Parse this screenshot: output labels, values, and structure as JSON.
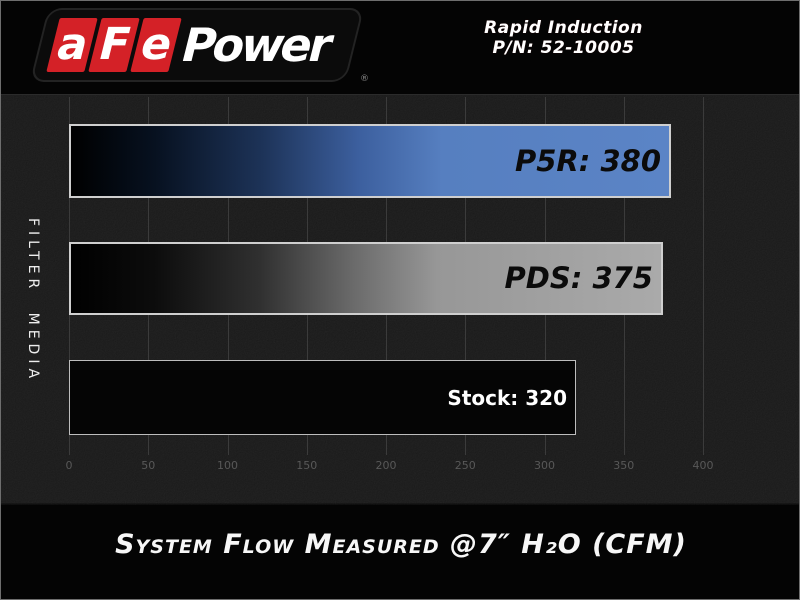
{
  "header": {
    "logo": {
      "letters": [
        "a",
        "F",
        "e"
      ],
      "word": "Power",
      "registered_mark": "®",
      "red_color": "#d42127"
    },
    "product_line1": "Rapid Induction",
    "product_line2": "P/N: 52-10005"
  },
  "chart_data": {
    "type": "bar",
    "orientation": "horizontal",
    "title": "",
    "ylabel": "FILTER MEDIA",
    "caption": "System Flow Measured @7″ H₂O (CFM)",
    "categories": [
      "P5R",
      "PDS",
      "Stock"
    ],
    "values": [
      380,
      375,
      320
    ],
    "bar_labels": [
      "P5R: 380",
      "PDS: 375",
      "Stock: 320"
    ],
    "x_ticks": [
      "0",
      "50",
      "100",
      "150",
      "200",
      "250",
      "300",
      "350",
      "400"
    ],
    "x_tick_values": [
      0,
      50,
      100,
      150,
      200,
      250,
      300,
      350,
      400
    ],
    "xlim": [
      0,
      400
    ],
    "grid": true,
    "legend": "none",
    "bar_styles": [
      {
        "fill": "gradient-black-to-blue",
        "end_color": "#5b84c6",
        "label_color": "#0b0b0b"
      },
      {
        "fill": "gradient-black-to-gray",
        "end_color": "#aaaaaa",
        "label_color": "#0b0b0b"
      },
      {
        "fill": "solid-black",
        "end_color": "#050505",
        "label_color": "#ffffff"
      }
    ],
    "gridline_color": "#3b3b3b",
    "plot_background": "#151515"
  }
}
